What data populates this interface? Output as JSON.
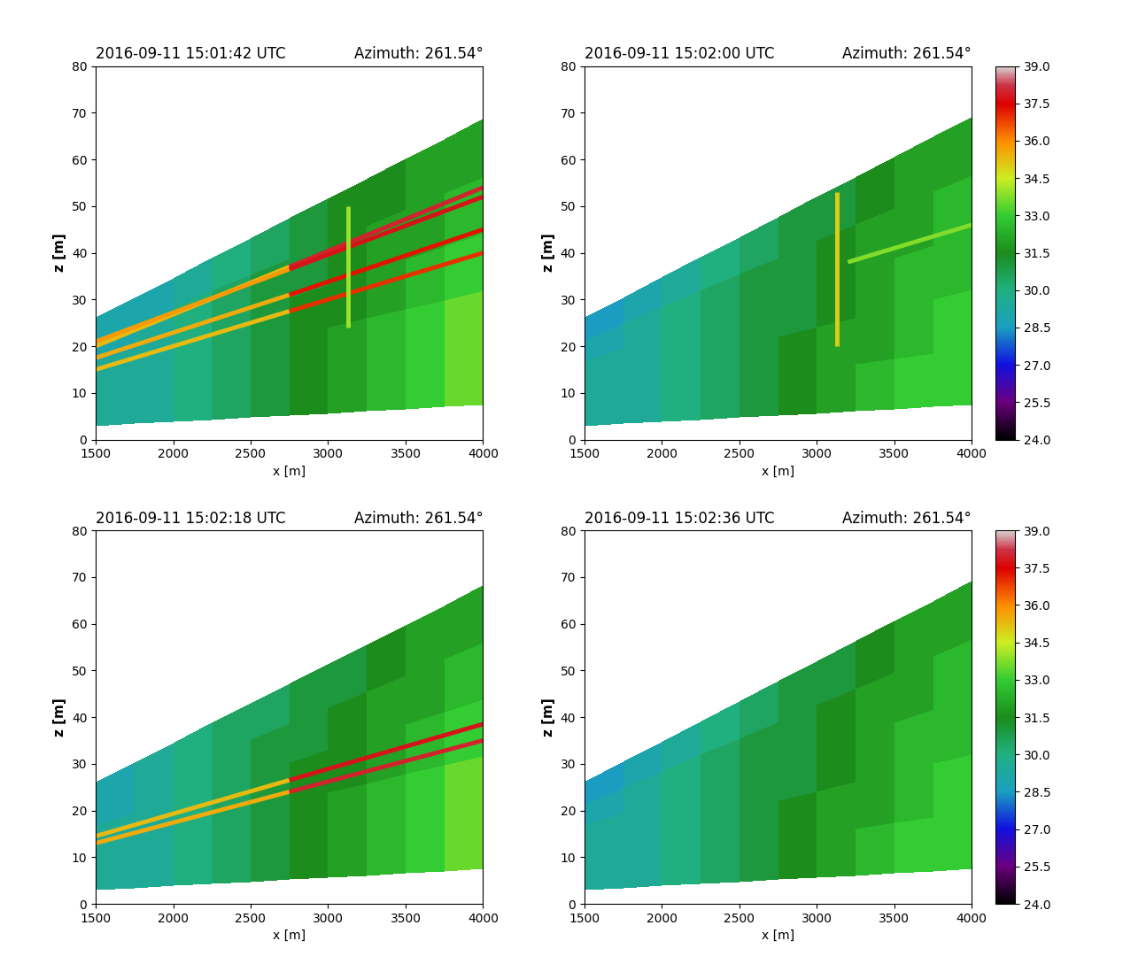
{
  "chart_data": [
    {
      "type": "heatmap",
      "title": "2016-09-11 15:01:42 UTC",
      "subtitle": "Azimuth: 261.54°",
      "x_label": "x [m]",
      "y_label": "z [m]",
      "xlim": [
        1500,
        4000
      ],
      "xticks": [
        1500,
        2000,
        2500,
        3000,
        3500,
        4000
      ],
      "ylim": [
        0,
        80
      ],
      "yticks": [
        0,
        10,
        20,
        30,
        40,
        50,
        60,
        70,
        80
      ],
      "scan_bottom": {
        "x": [
          1500,
          4000
        ],
        "z": [
          3,
          7.5
        ]
      },
      "scan_top": {
        "x": [
          1500,
          4000
        ],
        "z": [
          26,
          68.5
        ]
      },
      "cell_x_edges": [
        1500,
        1750,
        2000,
        2250,
        2500,
        2750,
        3000,
        3250,
        3500,
        3750,
        4000
      ],
      "cells": [
        [
          29.5,
          29.5,
          30,
          30.5,
          31,
          31.5,
          32,
          32.5,
          33,
          33.5
        ],
        [
          29.5,
          29.5,
          30,
          30.5,
          31,
          31.5,
          32,
          32.5,
          33,
          33.5
        ],
        [
          29.5,
          29.5,
          30,
          30.5,
          31,
          31.5,
          31.5,
          32,
          32.5,
          33
        ],
        [
          29,
          29.5,
          30,
          30.5,
          31,
          31,
          31.5,
          32,
          32,
          32.5
        ],
        [
          29,
          29,
          29.5,
          30,
          30.5,
          31,
          31.5,
          31.5,
          32,
          32
        ]
      ],
      "streaks": [
        {
          "x": [
            1500,
            2750,
            4000
          ],
          "z": [
            20,
            37,
            54
          ],
          "values": [
            33.5,
            37,
            39
          ]
        },
        {
          "x": [
            1500,
            2750,
            4000
          ],
          "z": [
            21,
            36.5,
            52
          ],
          "values": [
            34,
            37.5,
            38
          ]
        },
        {
          "x": [
            1500,
            2750,
            4000
          ],
          "z": [
            17.5,
            31,
            45
          ],
          "values": [
            34,
            37,
            37.5
          ]
        },
        {
          "x": [
            1500,
            2750,
            4000
          ],
          "z": [
            15,
            27.5,
            40
          ],
          "values": [
            34,
            36.5,
            37.5
          ]
        },
        {
          "x": [
            3130,
            3130
          ],
          "z": [
            24,
            50
          ],
          "values": [
            34,
            34
          ]
        }
      ]
    },
    {
      "type": "heatmap",
      "title": "2016-09-11 15:02:00 UTC",
      "subtitle": "Azimuth: 261.54°",
      "x_label": "x [m]",
      "y_label": "z [m]",
      "xlim": [
        1500,
        4000
      ],
      "xticks": [
        1500,
        2000,
        2500,
        3000,
        3500,
        4000
      ],
      "ylim": [
        0,
        80
      ],
      "yticks": [
        0,
        10,
        20,
        30,
        40,
        50,
        60,
        70,
        80
      ],
      "scan_bottom": {
        "x": [
          1500,
          4000
        ],
        "z": [
          3,
          7.5
        ]
      },
      "scan_top": {
        "x": [
          1500,
          4000
        ],
        "z": [
          26,
          69
        ]
      },
      "cell_x_edges": [
        1500,
        1750,
        2000,
        2250,
        2500,
        2750,
        3000,
        3250,
        3500,
        3750,
        4000
      ],
      "cells": [
        [
          29.5,
          29.5,
          30,
          30.5,
          31,
          31.5,
          32,
          32.5,
          33,
          33
        ],
        [
          29.5,
          29.5,
          30,
          30.5,
          31,
          31.5,
          32,
          32,
          32.5,
          33
        ],
        [
          29.5,
          29.5,
          30,
          30.5,
          31,
          31,
          31.5,
          32,
          32.5,
          32.5
        ],
        [
          29,
          29.5,
          30,
          30.5,
          31,
          31,
          31.5,
          32,
          32,
          32.5
        ],
        [
          28.5,
          29,
          29.5,
          30,
          30.5,
          31,
          31,
          31.5,
          32,
          32
        ]
      ],
      "streaks": [
        {
          "x": [
            3130,
            3130
          ],
          "z": [
            20,
            53
          ],
          "values": [
            35,
            35
          ]
        },
        {
          "x": [
            3200,
            4000
          ],
          "z": [
            38,
            46
          ],
          "values": [
            33.5,
            34
          ]
        }
      ],
      "colorbar": {
        "range": [
          24.0,
          39.0
        ],
        "ticks": [
          24.0,
          25.5,
          27.0,
          28.5,
          30.0,
          31.5,
          33.0,
          34.5,
          36.0,
          37.5,
          39.0
        ]
      }
    },
    {
      "type": "heatmap",
      "title": "2016-09-11 15:02:18 UTC",
      "subtitle": "Azimuth: 261.54°",
      "x_label": "x [m]",
      "y_label": "z [m]",
      "xlim": [
        1500,
        4000
      ],
      "xticks": [
        1500,
        2000,
        2500,
        3000,
        3500,
        4000
      ],
      "ylim": [
        0,
        80
      ],
      "yticks": [
        0,
        10,
        20,
        30,
        40,
        50,
        60,
        70,
        80
      ],
      "scan_bottom": {
        "x": [
          1500,
          4000
        ],
        "z": [
          3,
          7.5
        ]
      },
      "scan_top": {
        "x": [
          1500,
          4000
        ],
        "z": [
          26,
          68
        ]
      },
      "cell_x_edges": [
        1500,
        1750,
        2000,
        2250,
        2500,
        2750,
        3000,
        3250,
        3500,
        3750,
        4000
      ],
      "cells": [
        [
          29.5,
          29.5,
          30,
          30.5,
          31,
          31.5,
          32,
          32.5,
          33,
          33.5
        ],
        [
          29.5,
          29.5,
          30,
          30.5,
          31,
          31.5,
          32,
          32.5,
          33,
          33.5
        ],
        [
          29.5,
          29.5,
          30,
          30.5,
          31,
          31.5,
          31.5,
          32,
          32.5,
          33
        ],
        [
          29,
          29.5,
          30,
          30.5,
          31,
          31,
          31.5,
          32,
          32,
          32.5
        ],
        [
          29,
          29.5,
          30,
          30.5,
          30.5,
          31,
          31,
          31.5,
          32,
          32
        ]
      ],
      "streaks": [
        {
          "x": [
            1500,
            2750,
            4000
          ],
          "z": [
            14.5,
            26.5,
            38.5
          ],
          "values": [
            34,
            36.5,
            39
          ]
        },
        {
          "x": [
            1500,
            2750,
            4000
          ],
          "z": [
            13,
            24,
            35
          ],
          "values": [
            34,
            37,
            39
          ]
        }
      ]
    },
    {
      "type": "heatmap",
      "title": "2016-09-11 15:02:36 UTC",
      "subtitle": "Azimuth: 261.54°",
      "x_label": "x [m]",
      "y_label": "z [m]",
      "xlim": [
        1500,
        4000
      ],
      "xticks": [
        1500,
        2000,
        2500,
        3000,
        3500,
        4000
      ],
      "ylim": [
        0,
        80
      ],
      "yticks": [
        0,
        10,
        20,
        30,
        40,
        50,
        60,
        70,
        80
      ],
      "scan_bottom": {
        "x": [
          1500,
          4000
        ],
        "z": [
          3,
          7.5
        ]
      },
      "scan_top": {
        "x": [
          1500,
          4000
        ],
        "z": [
          26,
          69
        ]
      },
      "cell_x_edges": [
        1500,
        1750,
        2000,
        2250,
        2500,
        2750,
        3000,
        3250,
        3500,
        3750,
        4000
      ],
      "cells": [
        [
          29.5,
          29.5,
          30,
          30.5,
          31,
          31.5,
          32,
          32.5,
          33,
          33
        ],
        [
          29.5,
          29.5,
          30,
          30.5,
          31,
          31.5,
          32,
          32,
          32.5,
          33
        ],
        [
          29.5,
          29.5,
          30,
          30.5,
          31,
          31,
          31.5,
          32,
          32.5,
          32.5
        ],
        [
          29,
          29.5,
          30,
          30.5,
          31,
          31,
          31.5,
          32,
          32,
          32.5
        ],
        [
          28.5,
          29,
          29.5,
          30,
          30.5,
          31,
          31,
          31.5,
          32,
          32
        ]
      ],
      "streaks": [],
      "colorbar": {
        "range": [
          24.0,
          39.0
        ],
        "ticks": [
          24.0,
          25.5,
          27.0,
          28.5,
          30.0,
          31.5,
          33.0,
          34.5,
          36.0,
          37.5,
          39.0
        ]
      }
    }
  ]
}
